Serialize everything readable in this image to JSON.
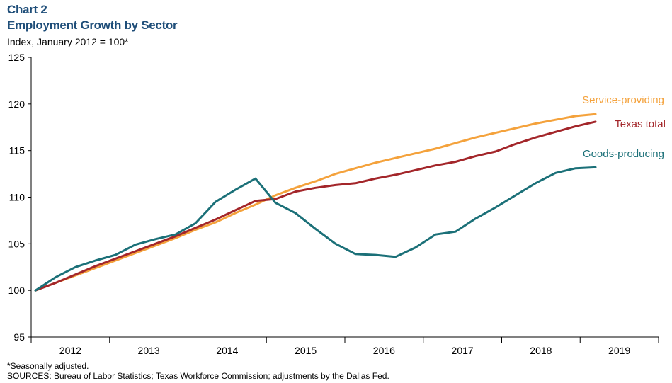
{
  "header": {
    "chart_number": "Chart 2",
    "title": "Employment Growth by Sector",
    "unit_label": "Index, January 2012 = 100*"
  },
  "footer": {
    "note": "*Seasonally adjusted.",
    "sources": "SOURCES: Bureau of Labor Statistics; Texas Workforce Commission; adjustments by the Dallas Fed."
  },
  "colors": {
    "service": "#f4a23c",
    "texas": "#a3262a",
    "goods": "#1b7078",
    "axis": "#000000"
  },
  "chart_data": {
    "type": "line",
    "title": "Employment Growth by Sector",
    "ylabel": "Index, January 2012 = 100*",
    "xlabel": "",
    "ylim": [
      95,
      125
    ],
    "yticks": [
      95,
      100,
      105,
      110,
      115,
      120,
      125
    ],
    "year_labels": [
      "2012",
      "2013",
      "2014",
      "2015",
      "2016",
      "2017",
      "2018",
      "2019"
    ],
    "x_note": "quarterly points from 2012 Q1 to 2019 Q1",
    "x": [
      "2012-Q1",
      "2012-Q2",
      "2012-Q3",
      "2012-Q4",
      "2013-Q1",
      "2013-Q2",
      "2013-Q3",
      "2013-Q4",
      "2014-Q1",
      "2014-Q2",
      "2014-Q3",
      "2014-Q4",
      "2015-Q1",
      "2015-Q2",
      "2015-Q3",
      "2015-Q4",
      "2016-Q1",
      "2016-Q2",
      "2016-Q3",
      "2016-Q4",
      "2017-Q1",
      "2017-Q2",
      "2017-Q3",
      "2017-Q4",
      "2018-Q1",
      "2018-Q2",
      "2018-Q3",
      "2018-Q4",
      "2019-Q1"
    ],
    "grid": false,
    "legend": "direct labels at line ends",
    "series": [
      {
        "name": "Service-providing",
        "color": "#f4a23c",
        "values": [
          100.0,
          100.8,
          101.6,
          102.4,
          103.2,
          104.0,
          104.8,
          105.6,
          106.5,
          107.3,
          108.3,
          109.2,
          110.2,
          111.0,
          111.7,
          112.5,
          113.1,
          113.7,
          114.2,
          114.7,
          115.2,
          115.8,
          116.4,
          116.9,
          117.4,
          117.9,
          118.3,
          118.7,
          118.9
        ],
        "end_label": "Service-providing"
      },
      {
        "name": "Texas total",
        "color": "#a3262a",
        "values": [
          100.0,
          100.8,
          101.7,
          102.6,
          103.4,
          104.2,
          105.0,
          105.8,
          106.7,
          107.6,
          108.6,
          109.6,
          109.8,
          110.6,
          111.0,
          111.3,
          111.5,
          112.0,
          112.4,
          112.9,
          113.4,
          113.8,
          114.4,
          114.9,
          115.7,
          116.4,
          117.0,
          117.6,
          118.1
        ],
        "end_label": "Texas total"
      },
      {
        "name": "Goods-producing",
        "color": "#1b7078",
        "values": [
          100.0,
          101.4,
          102.5,
          103.2,
          103.8,
          104.9,
          105.5,
          106.0,
          107.2,
          109.5,
          110.8,
          112.0,
          109.4,
          108.3,
          106.6,
          105.0,
          103.9,
          103.8,
          103.6,
          104.6,
          106.0,
          106.3,
          107.7,
          108.9,
          110.2,
          111.5,
          112.6,
          113.1,
          113.2
        ],
        "end_label": "Goods-producing"
      }
    ]
  }
}
